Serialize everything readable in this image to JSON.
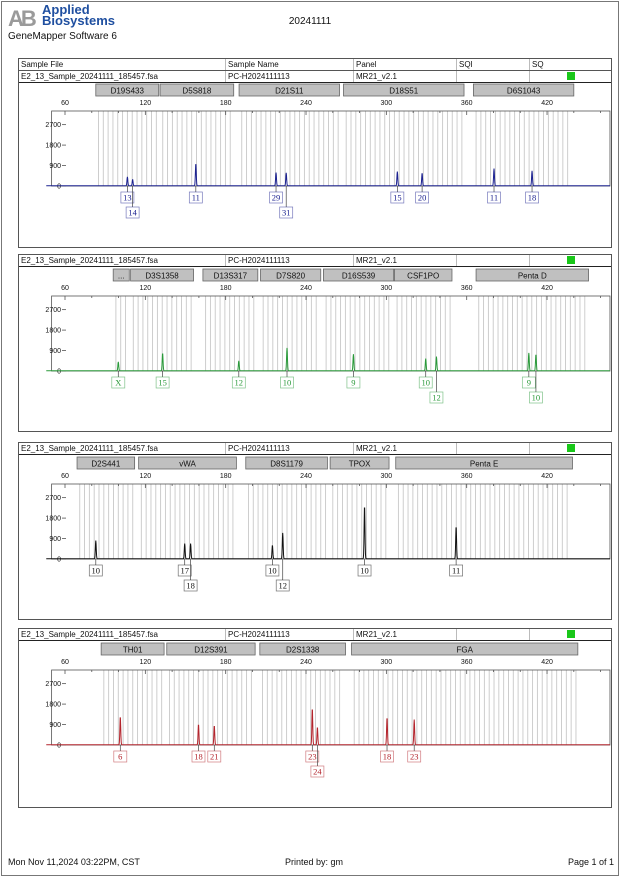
{
  "header": {
    "logo_text": "AB",
    "brand_line1": "Applied",
    "brand_line2": "Biosystems",
    "software": "GeneMapper Software 6",
    "title": "20241111"
  },
  "table_headers": [
    "Sample File",
    "Sample Name",
    "Panel",
    "SQI",
    "SQ"
  ],
  "footer": {
    "datetime": "Mon Nov 11,2024 03:22PM, CST",
    "printed_by": "Printed by: gm",
    "page": "Page 1 of 1"
  },
  "chart_data": [
    {
      "type": "line",
      "sample_file": "E2_13_Sample_20241111_185457.fsa",
      "sample_name": "PC-H2024111113",
      "panel": "MR21_v2.1",
      "sqi": "",
      "sq_color": "#19c719",
      "dye_color": "#1c2290",
      "x_ticks": [
        60,
        120,
        180,
        240,
        300,
        360,
        420
      ],
      "y_ticks": [
        0,
        900,
        1800,
        2700
      ],
      "xlim": [
        50,
        467
      ],
      "ylim": [
        0,
        3300
      ],
      "markers": [
        {
          "name": "D19S433",
          "range": [
            83,
            130
          ]
        },
        {
          "name": "D5S818",
          "range": [
            131,
            186
          ]
        },
        {
          "name": "D21S11",
          "range": [
            190,
            265
          ]
        },
        {
          "name": "D18S51",
          "range": [
            268,
            358
          ]
        },
        {
          "name": "D6S1043",
          "range": [
            365,
            440
          ]
        }
      ],
      "peaks": [
        {
          "allele": "13",
          "size": 106.6,
          "height": 394
        },
        {
          "allele": "14",
          "size": 110.5,
          "height": 277
        },
        {
          "allele": "11",
          "size": 157.7,
          "height": 978
        },
        {
          "allele": "29",
          "size": 217.6,
          "height": 584
        },
        {
          "allele": "31",
          "size": 225.2,
          "height": 569
        },
        {
          "allele": "15",
          "size": 308.2,
          "height": 628
        },
        {
          "allele": "20",
          "size": 326.7,
          "height": 555
        },
        {
          "allele": "11",
          "size": 380.4,
          "height": 759
        },
        {
          "allele": "18",
          "size": 408.8,
          "height": 657
        }
      ]
    },
    {
      "type": "line",
      "sample_file": "E2_13_Sample_20241111_185457.fsa",
      "sample_name": "PC-H2024111113",
      "panel": "MR21_v2.1",
      "sqi": "",
      "sq_color": "#19c719",
      "dye_color": "#2a9a3a",
      "x_ticks": [
        60,
        120,
        180,
        240,
        300,
        360,
        420
      ],
      "y_ticks": [
        0,
        900,
        1800,
        2700
      ],
      "xlim": [
        50,
        467
      ],
      "ylim": [
        0,
        3300
      ],
      "markers": [
        {
          "name": "...",
          "range": [
            96,
            108
          ]
        },
        {
          "name": "D3S1358",
          "range": [
            109,
            156
          ]
        },
        {
          "name": "D13S317",
          "range": [
            163,
            204
          ]
        },
        {
          "name": "D7S820",
          "range": [
            206,
            251
          ]
        },
        {
          "name": "D16S539",
          "range": [
            253,
            305.5
          ]
        },
        {
          "name": "CSF1PO",
          "range": [
            306,
            349
          ]
        },
        {
          "name": "Penta D",
          "range": [
            367,
            451
          ]
        }
      ],
      "peaks": [
        {
          "allele": "X",
          "size": 99.8,
          "height": 394
        },
        {
          "allele": "15",
          "size": 132.9,
          "height": 773
        },
        {
          "allele": "12",
          "size": 189.8,
          "height": 438
        },
        {
          "allele": "10",
          "size": 225.8,
          "height": 1007
        },
        {
          "allele": "9",
          "size": 275.4,
          "height": 730
        },
        {
          "allele": "10",
          "size": 329.4,
          "height": 540
        },
        {
          "allele": "12",
          "size": 337.4,
          "height": 628
        },
        {
          "allele": "9",
          "size": 406.4,
          "height": 788
        },
        {
          "allele": "10",
          "size": 411.7,
          "height": 715
        }
      ]
    },
    {
      "type": "line",
      "sample_file": "E2_13_Sample_20241111_185457.fsa",
      "sample_name": "PC-H2024111113",
      "panel": "MR21_v2.1",
      "sqi": "",
      "sq_color": "#19c719",
      "dye_color": "#111111",
      "x_ticks": [
        60,
        120,
        180,
        240,
        300,
        360,
        420
      ],
      "y_ticks": [
        0,
        900,
        1800,
        2700
      ],
      "xlim": [
        50,
        467
      ],
      "ylim": [
        0,
        3300
      ],
      "markers": [
        {
          "name": "D2S441",
          "range": [
            69,
            112
          ]
        },
        {
          "name": "vWA",
          "range": [
            115,
            188
          ]
        },
        {
          "name": "D8S1179",
          "range": [
            195,
            256
          ]
        },
        {
          "name": "TPOX",
          "range": [
            258,
            302
          ]
        },
        {
          "name": "Penta E",
          "range": [
            307,
            439
          ]
        }
      ],
      "peaks": [
        {
          "allele": "10",
          "size": 83.0,
          "height": 803
        },
        {
          "allele": "17",
          "size": 149.4,
          "height": 671
        },
        {
          "allele": "18",
          "size": 153.8,
          "height": 671
        },
        {
          "allele": "10",
          "size": 214.9,
          "height": 598
        },
        {
          "allele": "12",
          "size": 222.6,
          "height": 1138
        },
        {
          "allele": "10",
          "size": 283.7,
          "height": 2350
        },
        {
          "allele": "11",
          "size": 352.1,
          "height": 1430
        }
      ]
    },
    {
      "type": "line",
      "sample_file": "E2_13_Sample_20241111_185457.fsa",
      "sample_name": "PC-H2024111113",
      "panel": "MR21_v2.1",
      "sqi": "",
      "sq_color": "#19c719",
      "dye_color": "#b3242c",
      "x_ticks": [
        60,
        120,
        180,
        240,
        300,
        360,
        420
      ],
      "y_ticks": [
        0,
        900,
        1800,
        2700
      ],
      "xlim": [
        50,
        467
      ],
      "ylim": [
        0,
        3300
      ],
      "markers": [
        {
          "name": "TH01",
          "range": [
            87,
            134
          ]
        },
        {
          "name": "D12S391",
          "range": [
            136,
            202
          ]
        },
        {
          "name": "D2S1338",
          "range": [
            205.5,
            269.5
          ]
        },
        {
          "name": "FGA",
          "range": [
            274,
            443
          ]
        }
      ],
      "peaks": [
        {
          "allele": "6",
          "size": 101.3,
          "height": 1241
        },
        {
          "allele": "18",
          "size": 159.7,
          "height": 905
        },
        {
          "allele": "21",
          "size": 171.5,
          "height": 846
        },
        {
          "allele": "23",
          "size": 244.7,
          "height": 1605
        },
        {
          "allele": "24",
          "size": 248.5,
          "height": 773
        },
        {
          "allele": "18",
          "size": 300.5,
          "height": 1197
        },
        {
          "allele": "23",
          "size": 320.8,
          "height": 1109
        }
      ]
    }
  ]
}
